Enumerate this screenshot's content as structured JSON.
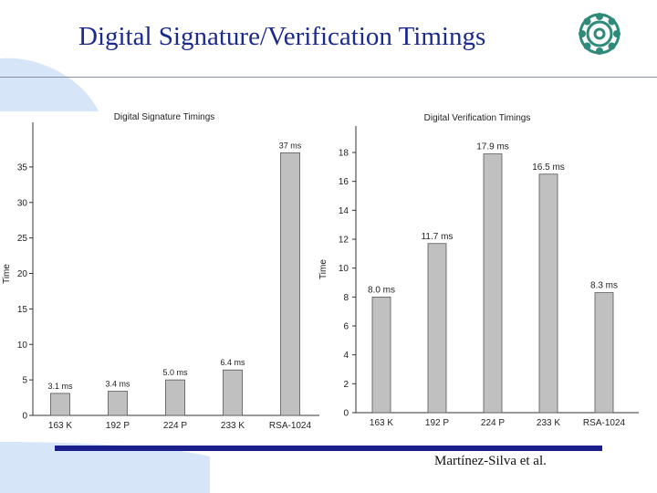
{
  "slide": {
    "title": "Digital Signature/Verification Timings",
    "footer": "Martínez-Silva et al."
  },
  "colors": {
    "title": "#1c2a8c",
    "footer_bar": "#1a1f8c",
    "decoration": "#d6e6f8",
    "bar_fill": "#c0c0c0",
    "logo": "#2f8a7a"
  },
  "icons": {
    "logo": "university-seal-logo"
  },
  "chart_data": [
    {
      "type": "bar",
      "title": "Digital Signature Timings",
      "ylabel": "Time",
      "categories": [
        "163 K",
        "192 P",
        "224 P",
        "233 K",
        "RSA-1024"
      ],
      "values": [
        3.1,
        3.4,
        5.0,
        6.4,
        37.0
      ],
      "data_labels": [
        "3.1 ms",
        "3.4 ms",
        "5.0 ms",
        "6.4 ms",
        "37 ms"
      ],
      "yticks": [
        0,
        5,
        10,
        15,
        20,
        25,
        30,
        35
      ],
      "ylim": [
        0,
        40
      ],
      "grid": false
    },
    {
      "type": "bar",
      "title": "Digital Verification Timings",
      "ylabel": "Time",
      "categories": [
        "163 K",
        "192 P",
        "224 P",
        "233 K",
        "RSA-1024"
      ],
      "values": [
        8.0,
        11.7,
        17.9,
        16.5,
        8.3
      ],
      "data_labels": [
        "8.0 ms",
        "11.7 ms",
        "17.9 ms",
        "16.5 ms",
        "8.3 ms"
      ],
      "yticks": [
        0,
        2,
        4,
        6,
        8,
        10,
        12,
        14,
        16,
        18
      ],
      "ylim": [
        0,
        19.2
      ],
      "grid": false
    }
  ]
}
